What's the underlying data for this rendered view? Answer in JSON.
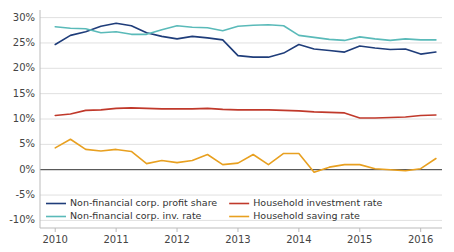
{
  "chart_data": {
    "type": "line",
    "x": [
      2010.0,
      2010.25,
      2010.5,
      2010.75,
      2011.0,
      2011.25,
      2011.5,
      2011.75,
      2012.0,
      2012.25,
      2012.5,
      2012.75,
      2013.0,
      2013.25,
      2013.5,
      2013.75,
      2014.0,
      2014.25,
      2014.5,
      2014.75,
      2015.0,
      2015.25,
      2015.5,
      2015.75,
      2016.0,
      2016.25
    ],
    "series": [
      {
        "name": "Non-financial corp. profit share",
        "color": "#1f3d7a",
        "values": [
          0.247,
          0.265,
          0.272,
          0.283,
          0.289,
          0.284,
          0.27,
          0.263,
          0.258,
          0.263,
          0.26,
          0.256,
          0.225,
          0.222,
          0.222,
          0.23,
          0.247,
          0.238,
          0.235,
          0.232,
          0.244,
          0.24,
          0.237,
          0.238,
          0.228,
          0.232
        ]
      },
      {
        "name": "Household investment rate",
        "color": "#c0392b",
        "values": [
          0.107,
          0.11,
          0.117,
          0.118,
          0.121,
          0.122,
          0.121,
          0.12,
          0.12,
          0.12,
          0.121,
          0.119,
          0.118,
          0.118,
          0.118,
          0.117,
          0.116,
          0.114,
          0.113,
          0.112,
          0.102,
          0.102,
          0.103,
          0.104,
          0.107,
          0.108
        ]
      },
      {
        "name": "Non-financial corp. inv. rate",
        "color": "#5abab9",
        "values": [
          0.282,
          0.279,
          0.278,
          0.27,
          0.272,
          0.267,
          0.267,
          0.276,
          0.284,
          0.281,
          0.28,
          0.274,
          0.283,
          0.285,
          0.286,
          0.284,
          0.265,
          0.261,
          0.257,
          0.255,
          0.262,
          0.258,
          0.255,
          0.258,
          0.256,
          0.256
        ]
      },
      {
        "name": "Household saving rate",
        "color": "#e8a020",
        "values": [
          0.043,
          0.06,
          0.04,
          0.037,
          0.04,
          0.036,
          0.012,
          0.018,
          0.014,
          0.018,
          0.03,
          0.01,
          0.013,
          0.03,
          0.01,
          0.032,
          0.032,
          -0.005,
          0.005,
          0.01,
          0.01,
          0.002,
          0.0,
          -0.002,
          0.002,
          0.022
        ]
      }
    ],
    "xlim": [
      2009.75,
      2016.35
    ],
    "ylim": [
      -0.115,
      0.315
    ],
    "xticks": [
      2010,
      2011,
      2012,
      2013,
      2014,
      2015,
      2016
    ],
    "yticks": [
      {
        "value": -0.1,
        "label": "-10%"
      },
      {
        "value": -0.05,
        "label": "-5%"
      },
      {
        "value": 0.0,
        "label": "0%"
      },
      {
        "value": 0.05,
        "label": "5%"
      },
      {
        "value": 0.1,
        "label": "10%"
      },
      {
        "value": 0.15,
        "label": "15%"
      },
      {
        "value": 0.2,
        "label": "20%"
      },
      {
        "value": 0.25,
        "label": "25%"
      },
      {
        "value": 0.3,
        "label": "30%"
      }
    ],
    "grid": true,
    "legend": "lower left"
  }
}
